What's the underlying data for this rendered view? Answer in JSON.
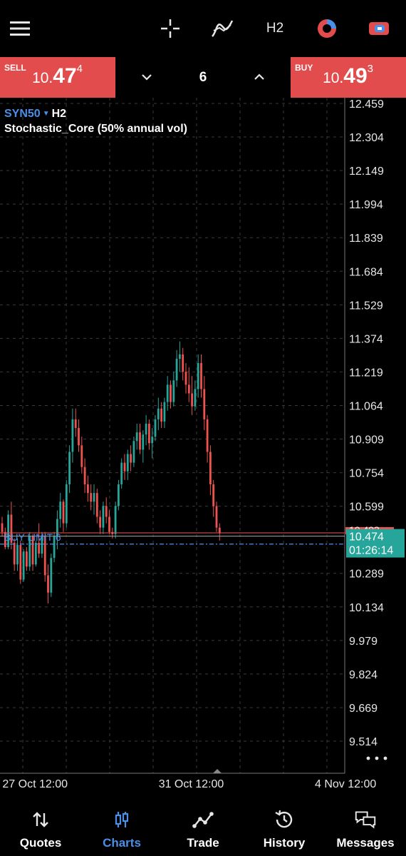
{
  "toolbar": {
    "menu_icon": "hamburger-menu-icon",
    "crosshair_icon": "crosshair-icon",
    "indicators_icon": "indicator-icon",
    "timeframe": "H2",
    "objects_icon": "objects-icon",
    "trade_icon": "one-click-trade-icon"
  },
  "trade_panel": {
    "sell_label": "SELL",
    "sell_price_small": "10.",
    "sell_price_big": "47",
    "sell_price_sup": "4",
    "buy_label": "BUY",
    "buy_price_small": "10.",
    "buy_price_big": "49",
    "buy_price_sup": "3",
    "volume": "6",
    "accent": "#e34c4c"
  },
  "chart_header": {
    "symbol": "SYN50",
    "timeframe": "H2",
    "indicator": "Stochastic_Core (50% annual vol)"
  },
  "chart_data": {
    "type": "candlestick",
    "symbol": "SYN50",
    "timeframe": "H2",
    "y_ticks": [
      "12.459",
      "12.304",
      "12.149",
      "11.994",
      "11.839",
      "11.684",
      "11.529",
      "11.374",
      "11.219",
      "11.064",
      "10.909",
      "10.754",
      "10.599",
      "10.289",
      "10.134",
      "9.979",
      "9.824",
      "9.669",
      "9.514"
    ],
    "ylim": [
      9.45,
      12.5
    ],
    "x_ticks": [
      "27 Oct 12:00",
      "31 Oct 12:00",
      "4 Nov 12:00"
    ],
    "x_tick_index": [
      8,
      59,
      110
    ],
    "current_price": "10.474",
    "countdown": "01:26:14",
    "hidden_price_label": "10.493",
    "order_line_label": "BUY LIMIT 6",
    "order_line_price": 10.424,
    "buy_line_price": 10.476,
    "bid_line_price": 10.474,
    "colors": {
      "up": "#26a69a",
      "down": "#ef5350",
      "bid_tag": "#26a69a",
      "ask_line": "#ef5350",
      "order": "#4a8fe8"
    },
    "candles": [
      [
        10.52,
        10.55,
        10.46,
        10.48
      ],
      [
        10.48,
        10.5,
        10.4,
        10.41
      ],
      [
        10.41,
        10.58,
        10.4,
        10.56
      ],
      [
        10.56,
        10.62,
        10.4,
        10.43
      ],
      [
        10.43,
        10.45,
        10.3,
        10.33
      ],
      [
        10.33,
        10.45,
        10.3,
        10.42
      ],
      [
        10.42,
        10.44,
        10.24,
        10.26
      ],
      [
        10.26,
        10.4,
        10.25,
        10.39
      ],
      [
        10.39,
        10.41,
        10.3,
        10.32
      ],
      [
        10.32,
        10.48,
        10.3,
        10.46
      ],
      [
        10.46,
        10.47,
        10.3,
        10.33
      ],
      [
        10.33,
        10.44,
        10.32,
        10.43
      ],
      [
        10.43,
        10.52,
        10.36,
        10.38
      ],
      [
        10.38,
        10.48,
        10.36,
        10.46
      ],
      [
        10.46,
        10.48,
        10.25,
        10.28
      ],
      [
        10.28,
        10.33,
        10.15,
        10.2
      ],
      [
        10.2,
        10.38,
        10.18,
        10.36
      ],
      [
        10.36,
        10.48,
        10.34,
        10.46
      ],
      [
        10.46,
        10.58,
        10.4,
        10.54
      ],
      [
        10.54,
        10.66,
        10.5,
        10.62
      ],
      [
        10.62,
        10.63,
        10.48,
        10.52
      ],
      [
        10.52,
        10.72,
        10.5,
        10.7
      ],
      [
        10.7,
        10.88,
        10.66,
        10.85
      ],
      [
        10.85,
        11.05,
        10.8,
        11.0
      ],
      [
        11.0,
        11.05,
        10.92,
        10.96
      ],
      [
        10.96,
        11.0,
        10.85,
        10.88
      ],
      [
        10.88,
        10.92,
        10.75,
        10.78
      ],
      [
        10.78,
        10.82,
        10.66,
        10.7
      ],
      [
        10.7,
        10.74,
        10.62,
        10.66
      ],
      [
        10.66,
        10.7,
        10.58,
        10.62
      ],
      [
        10.62,
        10.7,
        10.56,
        10.66
      ],
      [
        10.66,
        10.68,
        10.52,
        10.55
      ],
      [
        10.55,
        10.58,
        10.47,
        10.5
      ],
      [
        10.5,
        10.62,
        10.47,
        10.6
      ],
      [
        10.6,
        10.64,
        10.52,
        10.55
      ],
      [
        10.55,
        10.58,
        10.47,
        10.48
      ],
      [
        10.48,
        10.5,
        10.45,
        10.47
      ],
      [
        10.47,
        10.62,
        10.45,
        10.6
      ],
      [
        10.6,
        10.72,
        10.58,
        10.7
      ],
      [
        10.7,
        10.82,
        10.68,
        10.8
      ],
      [
        10.8,
        10.84,
        10.72,
        10.76
      ],
      [
        10.76,
        10.86,
        10.72,
        10.84
      ],
      [
        10.84,
        10.88,
        10.76,
        10.8
      ],
      [
        10.8,
        10.92,
        10.78,
        10.9
      ],
      [
        10.9,
        10.98,
        10.86,
        10.94
      ],
      [
        10.94,
        10.98,
        10.84,
        10.86
      ],
      [
        10.86,
        10.95,
        10.8,
        10.93
      ],
      [
        10.93,
        11.02,
        10.88,
        10.98
      ],
      [
        10.98,
        11.0,
        10.86,
        10.89
      ],
      [
        10.89,
        10.96,
        10.82,
        10.92
      ],
      [
        10.92,
        11.02,
        10.9,
        11.0
      ],
      [
        11.0,
        11.1,
        10.95,
        11.05
      ],
      [
        11.05,
        11.08,
        10.96,
        10.99
      ],
      [
        10.99,
        11.1,
        10.96,
        11.08
      ],
      [
        11.08,
        11.2,
        11.04,
        11.16
      ],
      [
        11.16,
        11.18,
        11.05,
        11.08
      ],
      [
        11.08,
        11.22,
        11.06,
        11.18
      ],
      [
        11.18,
        11.32,
        11.15,
        11.28
      ],
      [
        11.28,
        11.36,
        11.22,
        11.3
      ],
      [
        11.3,
        11.33,
        11.18,
        11.22
      ],
      [
        11.22,
        11.26,
        11.12,
        11.16
      ],
      [
        11.16,
        11.24,
        11.08,
        11.12
      ],
      [
        11.12,
        11.2,
        11.02,
        11.06
      ],
      [
        11.06,
        11.18,
        11.04,
        11.14
      ],
      [
        11.14,
        11.3,
        11.1,
        11.26
      ],
      [
        11.26,
        11.3,
        11.1,
        11.14
      ],
      [
        11.14,
        11.2,
        10.95,
        11.0
      ],
      [
        11.0,
        11.02,
        10.8,
        10.85
      ],
      [
        10.85,
        10.88,
        10.65,
        10.7
      ],
      [
        10.7,
        10.72,
        10.55,
        10.6
      ],
      [
        10.6,
        10.62,
        10.48,
        10.5
      ],
      [
        10.5,
        10.52,
        10.44,
        10.474
      ]
    ]
  },
  "bottom_nav": [
    {
      "label": "Quotes",
      "icon": "quotes-icon",
      "active": false
    },
    {
      "label": "Charts",
      "icon": "charts-icon",
      "active": true
    },
    {
      "label": "Trade",
      "icon": "trade-icon",
      "active": false
    },
    {
      "label": "History",
      "icon": "history-icon",
      "active": false
    },
    {
      "label": "Messages",
      "icon": "messages-icon",
      "active": false
    }
  ]
}
